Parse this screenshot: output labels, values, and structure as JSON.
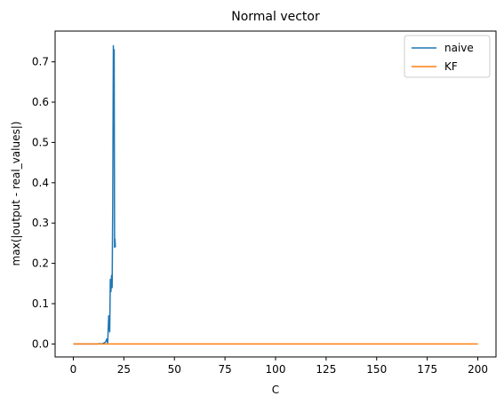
{
  "chart_data": {
    "type": "line",
    "title": "Normal vector",
    "xlabel": "C",
    "ylabel": "max(|output - real_values|)",
    "xlim": [
      -9,
      209
    ],
    "ylim": [
      -0.0322,
      0.7763
    ],
    "xticks": [
      0,
      25,
      50,
      75,
      100,
      125,
      150,
      175,
      200
    ],
    "xtick_labels": [
      "0",
      "25",
      "50",
      "75",
      "100",
      "125",
      "150",
      "175",
      "200"
    ],
    "yticks": [
      0.0,
      0.1,
      0.2,
      0.3,
      0.4,
      0.5,
      0.6,
      0.7
    ],
    "ytick_labels": [
      "0.0",
      "0.1",
      "0.2",
      "0.3",
      "0.4",
      "0.5",
      "0.6",
      "0.7"
    ],
    "grid": false,
    "legend_position": "upper right",
    "series": [
      {
        "name": "naive",
        "color": "#1f77b4",
        "x": [
          0,
          2,
          4,
          6,
          8,
          10,
          12,
          13,
          14,
          15,
          16,
          16.5,
          17,
          17.5,
          18,
          18.3,
          18.6,
          18.9,
          19.2,
          19.5,
          19.8,
          20,
          20.2,
          20.4,
          20.6,
          20.8
        ],
        "y": [
          0,
          0,
          0,
          0,
          0,
          0,
          0,
          0.001,
          0,
          0.002,
          0.005,
          0.012,
          0.003,
          0.07,
          0.03,
          0.16,
          0.13,
          0.17,
          0.14,
          0.35,
          0.74,
          0.62,
          0.73,
          0.24,
          0.26,
          0.24
        ]
      },
      {
        "name": "KF",
        "color": "#ff7f0e",
        "x": [
          0,
          200
        ],
        "y": [
          0,
          0
        ]
      }
    ]
  }
}
